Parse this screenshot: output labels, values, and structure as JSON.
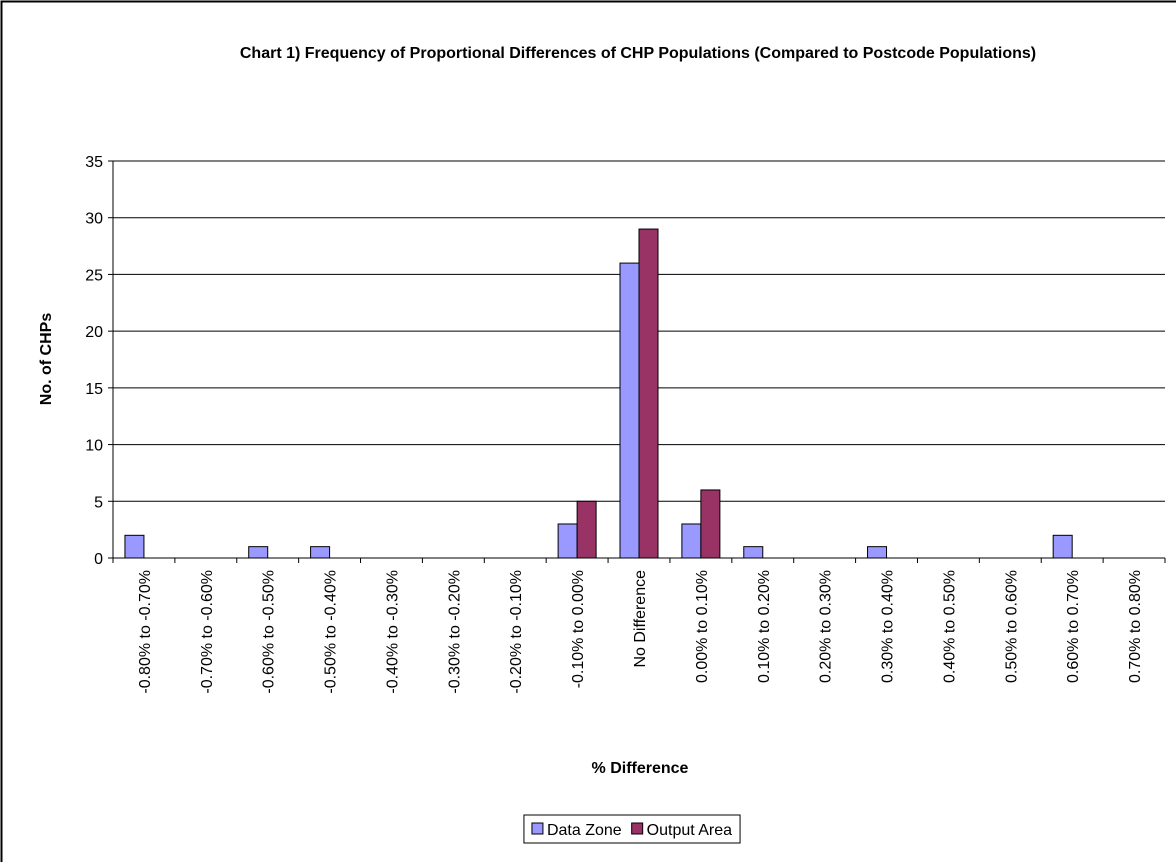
{
  "chart_data": {
    "type": "bar",
    "title": "Chart 1) Frequency of Proportional Differences of CHP Populations (Compared to Postcode Populations)",
    "x_label": "% Difference",
    "y_label": "No. of CHPs",
    "categories": [
      "-0.80% to -0.70%",
      "-0.70% to -0.60%",
      "-0.60% to -0.50%",
      "-0.50% to -0.40%",
      "-0.40% to -0.30%",
      "-0.30% to -0.20%",
      "-0.20% to -0.10%",
      "-0.10% to 0.00%",
      "No Difference",
      "0.00% to 0.10%",
      "0.10% to 0.20%",
      "0.20% to 0.30%",
      "0.30% to 0.40%",
      "0.40% to 0.50%",
      "0.50% to 0.60%",
      "0.60% to 0.70%",
      "0.70% to 0.80%"
    ],
    "series": [
      {
        "name": "Data Zone",
        "color": "#9999ff",
        "values": [
          2,
          0,
          1,
          1,
          0,
          0,
          0,
          3,
          26,
          3,
          1,
          0,
          1,
          0,
          0,
          2,
          0
        ]
      },
      {
        "name": "Output Area",
        "color": "#993366",
        "values": [
          0,
          0,
          0,
          0,
          0,
          0,
          0,
          5,
          29,
          6,
          0,
          0,
          0,
          0,
          0,
          0,
          0
        ]
      }
    ],
    "ylim": [
      0,
      35
    ],
    "yticks": [
      0,
      5,
      10,
      15,
      20,
      25,
      30,
      35
    ],
    "grid": true,
    "legend": "bottom"
  }
}
